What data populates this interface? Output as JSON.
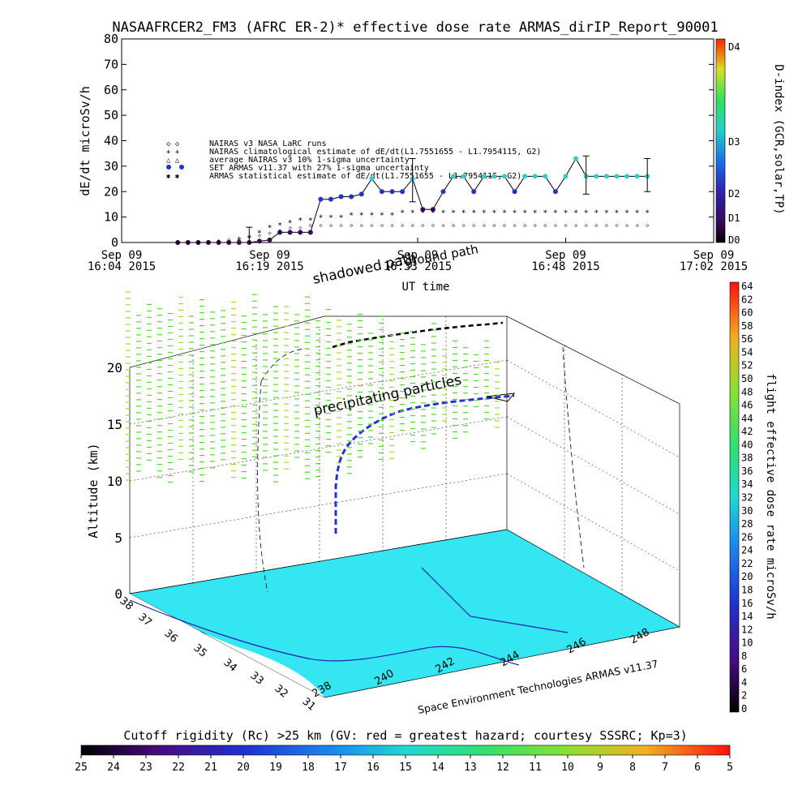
{
  "title": "NASAAFRCER2_FM3 (AFRC ER-2)* effective dose rate ARMAS_dirIP_Report_90001",
  "colors": {
    "series_line": "#000000",
    "set_armas_fill_low": "#2233cc",
    "set_armas_fill_high": "#33cccc",
    "ground": "#33e6f2",
    "coast": "#2222aa"
  },
  "chart_data": [
    {
      "type": "line",
      "title": "NASAAFRCER2_FM3 (AFRC ER-2)* effective dose rate ARMAS_dirIP_Report_90001",
      "xlabel": "UT time",
      "ylabel": "dE/dt microSv/h",
      "ylim": [
        0,
        80
      ],
      "yticks": [
        "0",
        "10",
        "20",
        "30",
        "40",
        "50",
        "60",
        "70",
        "80"
      ],
      "xlim_minutes": [
        0,
        58
      ],
      "xticks": [
        {
          "line1": "Sep 09",
          "line2": "16:04 2015",
          "min": 0
        },
        {
          "line1": "Sep 09",
          "line2": "16:19 2015",
          "min": 14.5
        },
        {
          "line1": "Sep 09",
          "line2": "16:33 2015",
          "min": 29
        },
        {
          "line1": "Sep 09",
          "line2": "16:48 2015",
          "min": 43.5
        },
        {
          "line1": "Sep 09",
          "line2": "17:02 2015",
          "min": 58
        }
      ],
      "right_axis": {
        "label": "D-index (GCR,solar,TP)",
        "ticks": [
          "D0",
          "D1",
          "D2",
          "D3",
          "D4"
        ]
      },
      "legend": {
        "placement": "upper-left inside",
        "entries": [
          {
            "symbol": "◇ ◇",
            "text": "NAIRAS v3 NASA LaRC runs"
          },
          {
            "symbol": "+ +",
            "text": "NAIRAS climatological estimate of dE/dt(L1.7551655 - L1.7954115, G2)"
          },
          {
            "symbol": "△ △",
            "text": "average NAIRAS v3 10% 1-sigma uncertainty"
          },
          {
            "symbol": "● ●",
            "text": "SET ARMAS v11.37 with 27% 1-sigma uncertainty"
          },
          {
            "symbol": "✱ ✱",
            "text": "ARMAS statistical estimate of dE/dt(L1.7551655 - L1.7954115, G2)"
          }
        ]
      },
      "series": [
        {
          "name": "SET ARMAS v11.37 with 27% 1-sigma uncertainty",
          "x_min": [
            5.5,
            6.5,
            7.5,
            8.5,
            9.5,
            10.5,
            11.5,
            12.5,
            13.5,
            14.5,
            15.5,
            16.5,
            17.5,
            18.5,
            19.5,
            20.5,
            21.5,
            22.5,
            23.5,
            24.5,
            25.5,
            26.5,
            27.5,
            28.5,
            29.5,
            30.5,
            31.5,
            32.5,
            33.5,
            34.5,
            35.5,
            36.5,
            37.5,
            38.5,
            39.5,
            40.5,
            41.5,
            42.5,
            43.5,
            44.5,
            45.5,
            46.5,
            47.5,
            48.5,
            49.5,
            50.5,
            51.5
          ],
          "values": [
            0,
            0,
            0,
            0,
            0,
            0,
            0,
            0,
            0.5,
            1,
            4,
            4,
            4,
            4,
            17,
            17,
            18,
            18,
            19,
            25,
            20,
            20,
            20,
            25,
            13,
            13,
            20,
            26,
            26,
            20,
            26,
            26,
            26,
            20,
            26,
            26,
            26,
            20,
            26,
            33,
            26,
            26,
            26,
            26,
            26,
            26,
            26
          ]
        },
        {
          "name": "ARMAS statistical estimate of dE/dt(L1.7551655 - L1.7954115, G2)",
          "x_min": [
            5.5,
            6.5,
            7.5,
            8.5,
            9.5,
            10.5,
            11.5,
            12.5,
            13.5,
            14.5,
            15.5,
            16.5,
            17.5,
            18.5,
            19.5,
            20.5,
            21.5,
            22.5,
            23.5,
            24.5,
            25.5,
            26.5,
            27.5,
            28.5,
            29.5,
            30.5,
            31.5,
            32.5,
            33.5,
            34.5,
            35.5,
            36.5,
            37.5,
            38.5,
            39.5,
            40.5,
            41.5,
            42.5,
            43.5,
            44.5,
            45.5,
            46.5,
            47.5,
            48.5,
            49.5,
            50.5,
            51.5
          ],
          "values": [
            0,
            0,
            0,
            0,
            0,
            0,
            1,
            2,
            4,
            6,
            7,
            8,
            9,
            9,
            10,
            10,
            10,
            11,
            11,
            11,
            11,
            11,
            12,
            12,
            12,
            12,
            12,
            12,
            12,
            12,
            12,
            12,
            12,
            12,
            12,
            12,
            12,
            12,
            12,
            12,
            12,
            12,
            12,
            12,
            12,
            12,
            12
          ]
        },
        {
          "name": "NAIRAS v3 NASA LaRC runs",
          "x_min": [
            5.5,
            6.5,
            7.5,
            8.5,
            9.5,
            10.5,
            11.5,
            12.5,
            13.5,
            14.5,
            15.5,
            16.5,
            17.5,
            18.5,
            19.5,
            20.5,
            21.5,
            22.5,
            23.5,
            24.5,
            25.5,
            26.5,
            27.5,
            28.5,
            29.5,
            30.5,
            31.5,
            32.5,
            33.5,
            34.5,
            35.5,
            36.5,
            37.5,
            38.5,
            39.5,
            40.5,
            41.5,
            42.5,
            43.5,
            44.5,
            45.5,
            46.5,
            47.5,
            48.5,
            49.5,
            50.5,
            51.5
          ],
          "values": [
            0,
            0,
            0,
            0.5,
            1,
            1.5,
            2,
            2.5,
            3,
            4,
            5,
            6,
            6,
            7,
            7,
            7,
            7,
            7,
            7,
            7,
            7,
            7,
            7,
            7,
            7,
            7,
            7,
            7,
            7,
            7,
            7,
            7,
            7,
            7,
            7,
            7,
            7,
            7,
            7,
            7,
            7,
            7,
            7,
            7,
            7,
            7,
            7
          ]
        }
      ],
      "annotations": [
        "shadowed path",
        "ground path"
      ]
    },
    {
      "type": "scatter",
      "title": "",
      "zlabel": "Altitude (km)",
      "zticks": [
        "0",
        "5",
        "10",
        "15",
        "20"
      ],
      "lat_ticks": [
        "38",
        "37",
        "36",
        "35",
        "34",
        "33",
        "32",
        "31"
      ],
      "lon_ticks": [
        "238",
        "240",
        "242",
        "244",
        "246",
        "248"
      ],
      "credit": "Space Environment Technologies ARMAS v11.37",
      "annotations": [
        "precipitating particles"
      ],
      "colorbar_right": {
        "label": "flight effective dose rate microSv/h",
        "ticks": [
          "0",
          "2",
          "4",
          "6",
          "8",
          "10",
          "12",
          "14",
          "16",
          "18",
          "20",
          "22",
          "24",
          "26",
          "28",
          "30",
          "32",
          "34",
          "36",
          "38",
          "40",
          "42",
          "44",
          "46",
          "48",
          "50",
          "52",
          "54",
          "56",
          "58",
          "60",
          "62",
          "64"
        ]
      },
      "colorbar_bottom": {
        "label": "Cutoff rigidity (Rc) >25 km (GV: red = greatest hazard; courtesy SSSRC; Kp=3)",
        "ticks": [
          "25",
          "24",
          "23",
          "22",
          "21",
          "20",
          "19",
          "18",
          "17",
          "16",
          "15",
          "14",
          "13",
          "12",
          "11",
          "10",
          "9",
          "8",
          "7",
          "6",
          "5"
        ]
      }
    }
  ]
}
